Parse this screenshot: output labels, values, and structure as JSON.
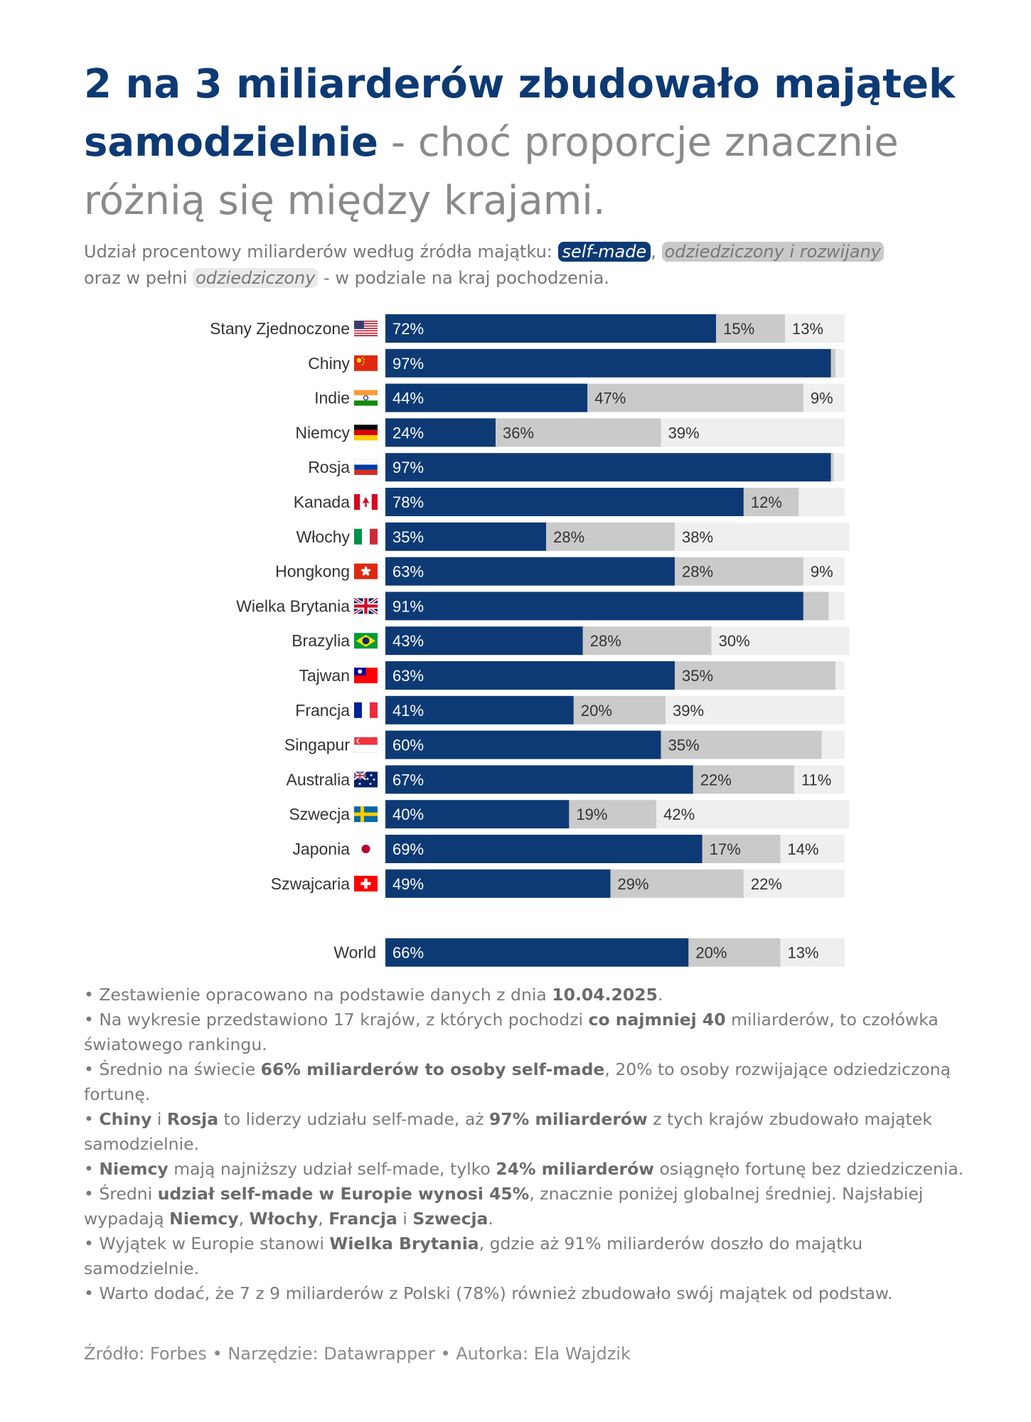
{
  "title": {
    "bold": "2 na 3 miliarderów zbudowało majątek samodzielnie",
    "rest": " - choć proporcje znacznie różnią się między krajami."
  },
  "subtitle": {
    "prefix": "Udział procentowy miliarderów według źródła majątku: ",
    "chip1": "self-made",
    "sep1": ", ",
    "chip2": "odziedziczony i rozwijany",
    "mid": " oraz w pełni ",
    "chip3": "odziedziczony",
    "suffix": " - w podziale na kraj pochodzenia."
  },
  "colors": {
    "self_made": "#0d3a74",
    "inherited_growing": "#cacaca",
    "inherited": "#efefef"
  },
  "chart_data": {
    "type": "bar",
    "orientation": "horizontal",
    "stacked": true,
    "series": [
      {
        "name": "self-made",
        "color": "#0d3a74"
      },
      {
        "name": "odziedziczony i rozwijany",
        "color": "#cacaca"
      },
      {
        "name": "odziedziczony",
        "color": "#efefef"
      }
    ],
    "rows": [
      {
        "country": "Stany Zjednoczone",
        "flag": "us",
        "values": [
          72,
          15,
          13
        ],
        "labels": [
          "72%",
          "15%",
          "13%"
        ]
      },
      {
        "country": "Chiny",
        "flag": "cn",
        "values": [
          97,
          1,
          2
        ],
        "labels": [
          "97%",
          "",
          ""
        ]
      },
      {
        "country": "Indie",
        "flag": "in",
        "values": [
          44,
          47,
          9
        ],
        "labels": [
          "44%",
          "47%",
          "9%"
        ]
      },
      {
        "country": "Niemcy",
        "flag": "de",
        "values": [
          24,
          36,
          39
        ],
        "labels": [
          "24%",
          "36%",
          "39%"
        ]
      },
      {
        "country": "Rosja",
        "flag": "ru",
        "values": [
          97,
          0.6,
          2.4
        ],
        "labels": [
          "97%",
          "",
          ""
        ]
      },
      {
        "country": "Kanada",
        "flag": "ca",
        "values": [
          78,
          12,
          10
        ],
        "labels": [
          "78%",
          "12%",
          ""
        ]
      },
      {
        "country": "Włochy",
        "flag": "it",
        "values": [
          35,
          28,
          38
        ],
        "labels": [
          "35%",
          "28%",
          "38%"
        ]
      },
      {
        "country": "Hongkong",
        "flag": "hk",
        "values": [
          63,
          28,
          9
        ],
        "labels": [
          "63%",
          "28%",
          "9%"
        ]
      },
      {
        "country": "Wielka Brytania",
        "flag": "gb",
        "values": [
          91,
          5.5,
          3.5
        ],
        "labels": [
          "91%",
          "",
          ""
        ]
      },
      {
        "country": "Brazylia",
        "flag": "br",
        "values": [
          43,
          28,
          30
        ],
        "labels": [
          "43%",
          "28%",
          "30%"
        ]
      },
      {
        "country": "Tajwan",
        "flag": "tw",
        "values": [
          63,
          35,
          2
        ],
        "labels": [
          "63%",
          "35%",
          ""
        ]
      },
      {
        "country": "Francja",
        "flag": "fr",
        "values": [
          41,
          20,
          39
        ],
        "labels": [
          "41%",
          "20%",
          "39%"
        ]
      },
      {
        "country": "Singapur",
        "flag": "sg",
        "values": [
          60,
          35,
          4
        ],
        "labels": [
          "60%",
          "35%",
          ""
        ]
      },
      {
        "country": "Australia",
        "flag": "au",
        "values": [
          67,
          22,
          11
        ],
        "labels": [
          "67%",
          "22%",
          "11%"
        ]
      },
      {
        "country": "Szwecja",
        "flag": "se",
        "values": [
          40,
          19,
          42
        ],
        "labels": [
          "40%",
          "19%",
          "42%"
        ]
      },
      {
        "country": "Japonia",
        "flag": "jp",
        "values": [
          69,
          17,
          14
        ],
        "labels": [
          "69%",
          "17%",
          "14%"
        ]
      },
      {
        "country": "Szwajcaria",
        "flag": "ch",
        "values": [
          49,
          29,
          22
        ],
        "labels": [
          "49%",
          "29%",
          "22%"
        ]
      }
    ],
    "total": {
      "country": "World",
      "values": [
        66,
        20,
        13
      ],
      "labels": [
        "66%",
        "20%",
        "13%"
      ]
    },
    "xlim": [
      0,
      100
    ]
  },
  "notes": {
    "n1a": "• Zestawienie opracowano na podstawie danych z dnia ",
    "n1b": "10.04.2025",
    "n1c": ".",
    "n2a": "• Na wykresie przedstawiono 17 krajów, z których pochodzi ",
    "n2b": "co najmniej 40",
    "n2c": " miliarderów, to czołówka światowego rankingu.",
    "n3a": "• Średnio na świecie ",
    "n3b": "66% miliarderów to osoby self-made",
    "n3c": ", 20% to osoby rozwijające odziedziczoną fortunę.",
    "n4a": "• ",
    "n4b": "Chiny",
    "n4c": " i ",
    "n4d": "Rosja",
    "n4e": " to liderzy udziału self-made, aż ",
    "n4f": "97% miliarderów",
    "n4g": " z tych krajów zbudowało majątek samodzielnie.",
    "n5a": "• ",
    "n5b": "Niemcy",
    "n5c": " mają najniższy udział self-made, tylko ",
    "n5d": "24% miliarderów",
    "n5e": " osiągnęło fortunę bez dziedziczenia.",
    "n6a": "• Średni ",
    "n6b": "udział self-made w Europie wynosi 45%",
    "n6c": ", znacznie poniżej globalnej średniej. Najsłabiej wypadają ",
    "n6d": "Niemcy",
    "n6e": ", ",
    "n6f": "Włochy",
    "n6g": ", ",
    "n6h": "Francja",
    "n6i": " i ",
    "n6j": "Szwecja",
    "n6k": ".",
    "n7a": " • Wyjątek w Europie stanowi ",
    "n7b": "Wielka Brytania",
    "n7c": ", gdzie aż 91% miliarderów doszło do majątku samodzielnie.",
    "n8": " • Warto dodać, że 7 z 9 miliarderów z Polski (78%) również zbudowało swój majątek od podstaw."
  },
  "source": "Źródło: Forbes • Narzędzie: Datawrapper • Autorka: Ela Wajdzik"
}
